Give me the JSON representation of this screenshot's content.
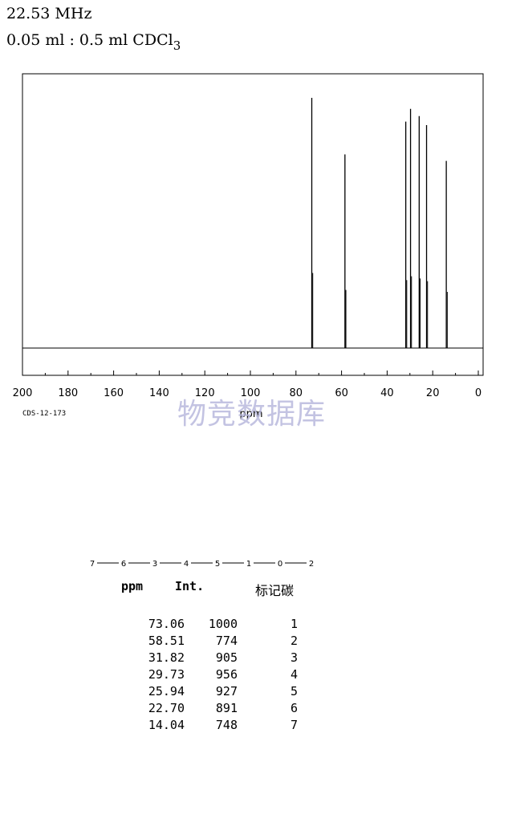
{
  "header": {
    "frequency": "22.53 MHz",
    "sample_prefix": "0.05 ml : 0.5 ml CDCl",
    "sample_subscript": "3"
  },
  "spectrum_code": "CDS-12-173",
  "watermark": "物竞数据库",
  "chart_data": {
    "type": "line",
    "xlabel": "ppm",
    "xlim": [
      200,
      0
    ],
    "x_ticks": [
      200,
      180,
      160,
      140,
      120,
      100,
      80,
      60,
      40,
      20,
      0
    ],
    "grid": false,
    "peaks": [
      {
        "ppm": 73.06,
        "intensity": 1000
      },
      {
        "ppm": 58.51,
        "intensity": 774
      },
      {
        "ppm": 31.82,
        "intensity": 905
      },
      {
        "ppm": 29.73,
        "intensity": 956
      },
      {
        "ppm": 25.94,
        "intensity": 927
      },
      {
        "ppm": 22.7,
        "intensity": 891
      },
      {
        "ppm": 14.04,
        "intensity": 748
      }
    ]
  },
  "molecule": {
    "atoms": [
      "7",
      "6",
      "3",
      "4",
      "5",
      "1",
      "0",
      "2"
    ]
  },
  "table": {
    "headers": {
      "ppm": "ppm",
      "int": "Int.",
      "carbon": "标记碳"
    },
    "rows": [
      {
        "ppm": "73.06",
        "int": "1000",
        "carbon": "1"
      },
      {
        "ppm": "58.51",
        "int": "774",
        "carbon": "2"
      },
      {
        "ppm": "31.82",
        "int": "905",
        "carbon": "3"
      },
      {
        "ppm": "29.73",
        "int": "956",
        "carbon": "4"
      },
      {
        "ppm": "25.94",
        "int": "927",
        "carbon": "5"
      },
      {
        "ppm": "22.70",
        "int": "891",
        "carbon": "6"
      },
      {
        "ppm": "14.04",
        "int": "748",
        "carbon": "7"
      }
    ]
  }
}
